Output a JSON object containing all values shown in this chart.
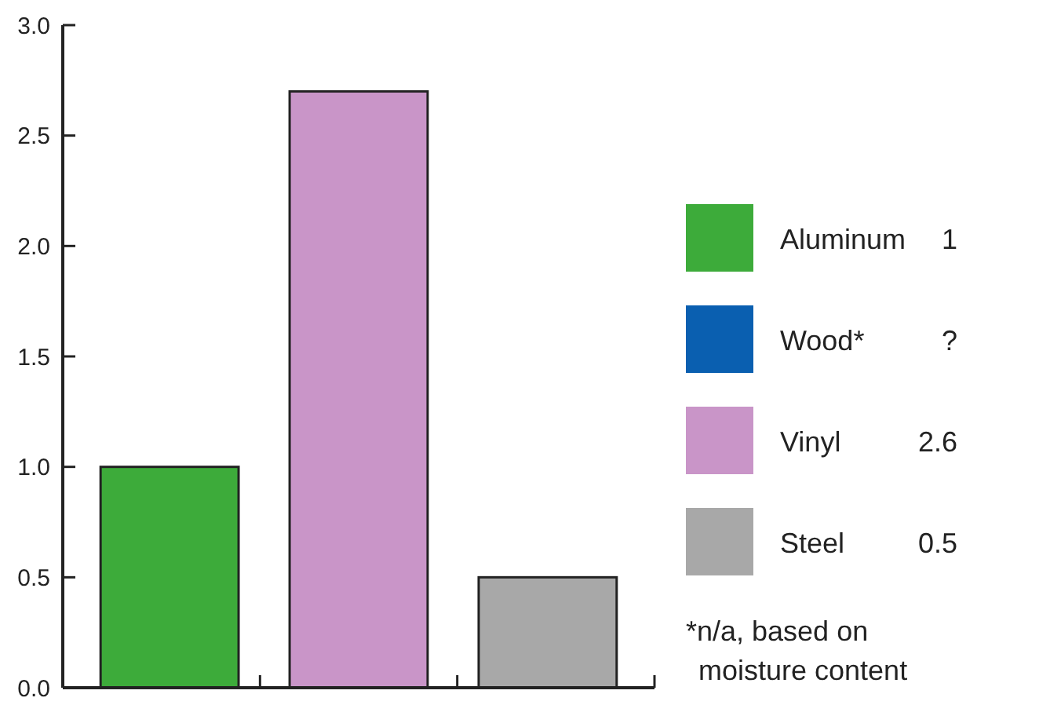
{
  "chart_data": {
    "type": "bar",
    "categories": [
      null,
      null,
      null
    ],
    "series": [
      {
        "name": "Aluminum",
        "color": "#3dab3a",
        "values": [
          1,
          null,
          null
        ]
      },
      {
        "name": "Wood*",
        "color": "#0a5fb0",
        "values": [
          null,
          null,
          null
        ]
      },
      {
        "name": "Vinyl",
        "color": "#c995c8",
        "values": [
          null,
          2.7,
          null
        ]
      },
      {
        "name": "Steel",
        "color": "#a8a8a8",
        "values": [
          null,
          null,
          0.5
        ]
      }
    ],
    "ylim": [
      0,
      3
    ],
    "yticks": [
      {
        "value": 0,
        "label": "0.0"
      },
      {
        "value": 0.5,
        "label": "0.5"
      },
      {
        "value": 1,
        "label": "1.0"
      },
      {
        "value": 1.5,
        "label": "1.5"
      },
      {
        "value": 2,
        "label": "2.0"
      },
      {
        "value": 2.5,
        "label": "2.5"
      },
      {
        "value": 3,
        "label": "3.0"
      }
    ],
    "legend": "right",
    "annotations": [
      "1",
      "?",
      "2.6",
      "0.5",
      "*n/a, based on moisture content"
    ]
  }
}
